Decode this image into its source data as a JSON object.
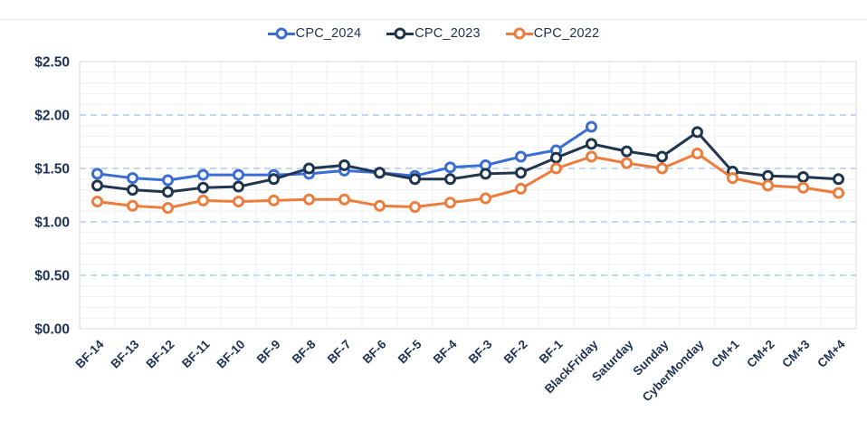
{
  "chart_data": {
    "type": "line",
    "title": "",
    "xlabel": "",
    "ylabel": "",
    "categories": [
      "BF-14",
      "BF-13",
      "BF-12",
      "BF-11",
      "BF-10",
      "BF-9",
      "BF-8",
      "BF-7",
      "BF-6",
      "BF-5",
      "BF-4",
      "BF-3",
      "BF-2",
      "BF-1",
      "BlackFriday",
      "Saturday",
      "Sunday",
      "CyberMonday",
      "CM+1",
      "CM+2",
      "CM+3",
      "CM+4"
    ],
    "series": [
      {
        "name": "CPC_2024",
        "color": "#3a6ed5",
        "values": [
          1.45,
          1.41,
          1.39,
          1.44,
          1.44,
          1.44,
          1.45,
          1.48,
          1.46,
          1.43,
          1.51,
          1.53,
          1.61,
          1.67,
          1.89,
          null,
          null,
          null,
          null,
          null,
          null,
          null
        ]
      },
      {
        "name": "CPC_2023",
        "color": "#20364f",
        "values": [
          1.34,
          1.3,
          1.28,
          1.32,
          1.33,
          1.4,
          1.5,
          1.53,
          1.46,
          1.4,
          1.4,
          1.45,
          1.46,
          1.6,
          1.73,
          1.66,
          1.61,
          1.84,
          1.47,
          1.43,
          1.42,
          1.4
        ]
      },
      {
        "name": "CPC_2022",
        "color": "#ed7d3c",
        "values": [
          1.19,
          1.15,
          1.13,
          1.2,
          1.19,
          1.2,
          1.21,
          1.21,
          1.15,
          1.14,
          1.18,
          1.22,
          1.31,
          1.5,
          1.61,
          1.55,
          1.5,
          1.64,
          1.41,
          1.34,
          1.32,
          1.27
        ]
      }
    ],
    "ylim": [
      0,
      2.5
    ],
    "y_major_step": 0.5,
    "y_minor_step": 0.1,
    "y_ticks": [
      "$0.00",
      "$0.50",
      "$1.00",
      "$1.50",
      "$2.00",
      "$2.50"
    ],
    "legend_position": "top-center",
    "grid": {
      "major": "dashed-blue",
      "minor": "light-gray",
      "vertical": "light-gray"
    },
    "marker": "open-circle"
  },
  "colors": {
    "axis_text": "#1d3253",
    "major_grid": "#b0ccf0",
    "minor_grid": "#f1f1f1",
    "vertical_grid": "#efefef",
    "plot_border": "#d9d9d9"
  }
}
